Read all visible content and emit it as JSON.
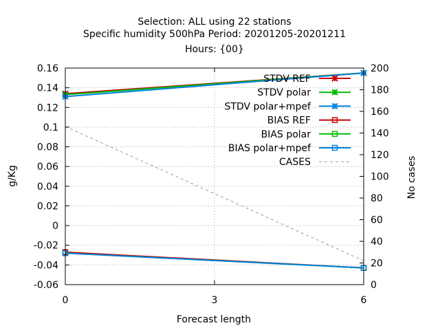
{
  "chart_data": {
    "type": "line",
    "title_lines": [
      "Selection: ALL using    22 stations",
      "Specific humidity 500hPa   Period: 20201205-20201211",
      "Hours: {00}"
    ],
    "xlabel": "Forecast length",
    "ylabel": "g/Kg",
    "y2label": "No cases",
    "x_ticks": [
      0,
      3,
      6
    ],
    "y_ticks": [
      -0.06,
      -0.04,
      -0.02,
      0,
      0.02,
      0.04,
      0.06,
      0.08,
      0.1,
      0.12,
      0.14,
      0.16
    ],
    "y_tick_labels": [
      "-0.06",
      "-0.04",
      "-0.02",
      "0",
      "0.02",
      "0.04",
      "0.06",
      "0.08",
      "0.1",
      "0.12",
      "0.14",
      "0.16"
    ],
    "y2_ticks": [
      0,
      20,
      40,
      60,
      80,
      100,
      120,
      140,
      160,
      180,
      200
    ],
    "xlim": [
      0,
      6
    ],
    "ylim": [
      -0.06,
      0.16
    ],
    "y2lim": [
      0,
      200
    ],
    "grid": true,
    "legend_position": "top-right",
    "x": [
      0,
      6
    ],
    "series": [
      {
        "name": "STDV REF",
        "values": [
          0.134,
          0.155
        ],
        "color": "#cc0000",
        "marker": "x",
        "axis": "y"
      },
      {
        "name": "STDV polar",
        "values": [
          0.133,
          0.155
        ],
        "color": "#00bb00",
        "marker": "x",
        "axis": "y"
      },
      {
        "name": "STDV polar+mpef",
        "values": [
          0.131,
          0.155
        ],
        "color": "#0080e0",
        "marker": "x",
        "axis": "y"
      },
      {
        "name": "BIAS REF",
        "values": [
          -0.027,
          -0.043
        ],
        "color": "#cc0000",
        "marker": "square",
        "axis": "y"
      },
      {
        "name": "BIAS polar",
        "values": [
          -0.028,
          -0.043
        ],
        "color": "#00bb00",
        "marker": "square",
        "axis": "y"
      },
      {
        "name": "BIAS polar+mpef",
        "values": [
          -0.028,
          -0.043
        ],
        "color": "#0080e0",
        "marker": "square",
        "axis": "y"
      },
      {
        "name": "CASES",
        "values": [
          146,
          22
        ],
        "color": "#999999",
        "marker": "none",
        "dashed": true,
        "axis": "y2"
      }
    ]
  }
}
